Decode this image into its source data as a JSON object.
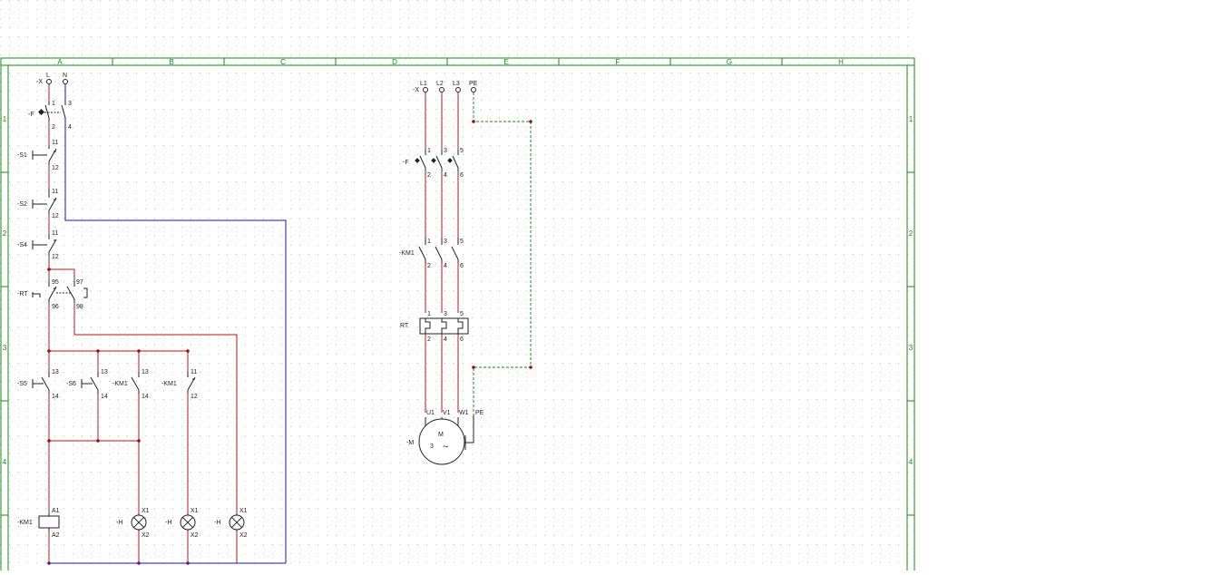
{
  "sheet": {
    "columns": [
      "A",
      "B",
      "C",
      "D",
      "E",
      "F",
      "G",
      "H"
    ],
    "rows": [
      "1",
      "2",
      "3",
      "4"
    ]
  },
  "control_circuit": {
    "supply": {
      "tag": "-X",
      "terminals": [
        "L",
        "N"
      ]
    },
    "fuse": {
      "tag": "-F",
      "pins": [
        "1",
        "3",
        "2",
        "4"
      ]
    },
    "s1": {
      "tag": "-S1",
      "top": "11",
      "bottom": "12"
    },
    "s2": {
      "tag": "-S2",
      "top": "11",
      "bottom": "12"
    },
    "s4": {
      "tag": "-S4",
      "top": "11",
      "bottom": "12"
    },
    "rt": {
      "tag": "-RT",
      "nc_top": "95",
      "nc_bottom": "96",
      "no_top": "97",
      "no_bottom": "98"
    },
    "s5": {
      "tag": "-S5",
      "top": "13",
      "bottom": "14"
    },
    "s6": {
      "tag": "-S6",
      "top": "13",
      "bottom": "14"
    },
    "km1_no": {
      "tag": "-KM1",
      "top": "13",
      "bottom": "14"
    },
    "km1_nc": {
      "tag": "-KM1",
      "top": "11",
      "bottom": "12"
    },
    "coil": {
      "tag": "-KM1",
      "top": "A1",
      "bottom": "A2"
    },
    "lamps": [
      {
        "tag": "-H",
        "top": "X1",
        "bottom": "X2"
      },
      {
        "tag": "-H",
        "top": "X1",
        "bottom": "X2"
      },
      {
        "tag": "-H",
        "top": "X1",
        "bottom": "X2"
      }
    ]
  },
  "power_circuit": {
    "supply": {
      "tag": "-X",
      "terminals": [
        "L1",
        "L2",
        "L3",
        "PE"
      ]
    },
    "breaker": {
      "tag": "-F",
      "top": [
        "1",
        "3",
        "5"
      ],
      "bottom": [
        "2",
        "4",
        "6"
      ]
    },
    "contactor": {
      "tag": "-KM1",
      "top": [
        "1",
        "3",
        "5"
      ],
      "bottom": [
        "2",
        "4",
        "6"
      ]
    },
    "overload": {
      "tag": "RT",
      "top": [
        "1",
        "3",
        "5"
      ],
      "bottom": [
        "2",
        "4",
        "6"
      ]
    },
    "motor": {
      "tag": "-M",
      "terminals": [
        "U1",
        "V1",
        "W1",
        "PE"
      ],
      "letter": "M",
      "phases": "3",
      "symbol": "~"
    }
  },
  "colors": {
    "frame": "#1a8a1a",
    "phase_wire": "#b01818",
    "neutral_wire": "#1a1aa8",
    "protective_earth": "#1a8a1a",
    "grid_dot": "#c8c8c8"
  }
}
